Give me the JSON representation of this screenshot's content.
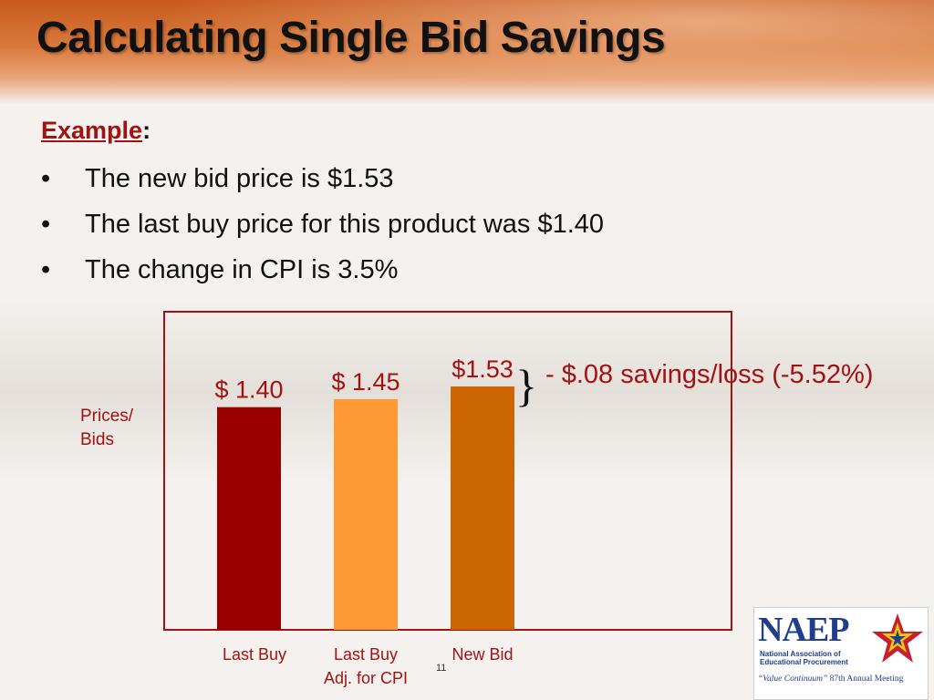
{
  "title": "Calculating Single Bid Savings",
  "example_label": "Example",
  "example_colon": ":",
  "bullet_glyph": "•",
  "bullets": [
    "The new bid price is $1.53",
    "The last buy price for this product was $1.40",
    "The change in CPI is 3.5%"
  ],
  "chart_data": {
    "type": "bar",
    "ylabel_lines": [
      "Prices/",
      "Bids"
    ],
    "categories": [
      {
        "lines": [
          "Last Buy"
        ]
      },
      {
        "lines": [
          "Last Buy",
          "Adj. for CPI"
        ]
      },
      {
        "lines": [
          "New Bid"
        ]
      }
    ],
    "values": [
      1.4,
      1.45,
      1.53
    ],
    "data_labels": [
      "$ 1.40",
      "$ 1.45",
      "$1.53"
    ],
    "colors": [
      "#990000",
      "#ff9933",
      "#cc6600"
    ],
    "ylim": [
      0,
      2.0
    ],
    "annotation_brace": "}",
    "annotation": "- $.08 savings/loss (-5.52%)",
    "frame_color": "#a31212"
  },
  "page_number": "11",
  "logo": {
    "name": "NAEP",
    "org_lines": [
      "National Association of",
      "Educational Procurement"
    ],
    "tagline_quote": "“Value Continuum”",
    "tagline_meeting": "87th Annual Meeting"
  }
}
